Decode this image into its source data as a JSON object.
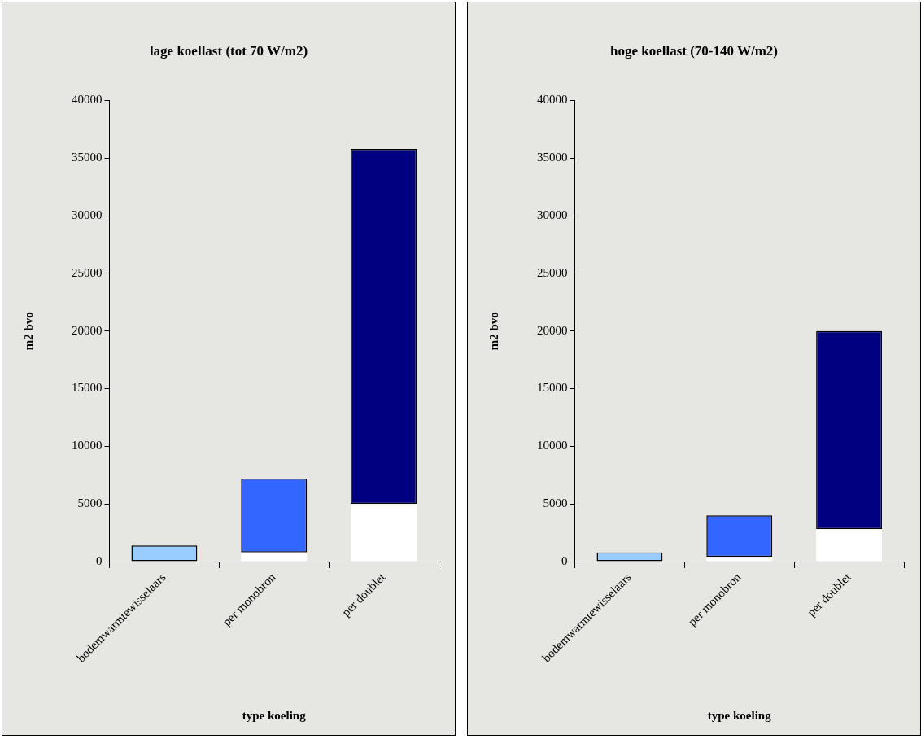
{
  "chart_data": [
    {
      "type": "bar",
      "title": "lage koellast (tot 70 W/m2)",
      "xlabel": "type koeling",
      "ylabel": "m2 bvo",
      "categories": [
        "bodemwarmtewisselaars",
        "per monobron",
        "per doublet"
      ],
      "stacked": true,
      "series": [
        {
          "color": "#ffffff",
          "values": [
            0,
            800,
            5000
          ]
        },
        {
          "colors": [
            "#99ccff",
            "#3366ff",
            "#000080"
          ],
          "values": [
            1400,
            6400,
            30800
          ]
        }
      ],
      "ylim": [
        0,
        40000
      ],
      "yticks": [
        0,
        5000,
        10000,
        15000,
        20000,
        25000,
        30000,
        35000,
        40000
      ],
      "grid": false,
      "legend": false
    },
    {
      "type": "bar",
      "title": "hoge koellast (70-140 W/m2)",
      "xlabel": "type koeling",
      "ylabel": "m2 bvo",
      "categories": [
        "bodemwarmtewisselaars",
        "per monobron",
        "per doublet"
      ],
      "stacked": true,
      "series": [
        {
          "color": "#ffffff",
          "values": [
            0,
            400,
            2800
          ]
        },
        {
          "colors": [
            "#99ccff",
            "#3366ff",
            "#000080"
          ],
          "values": [
            800,
            3600,
            17200
          ]
        }
      ],
      "ylim": [
        0,
        40000
      ],
      "yticks": [
        0,
        5000,
        10000,
        15000,
        20000,
        25000,
        30000,
        35000,
        40000
      ],
      "grid": false,
      "legend": false
    }
  ]
}
